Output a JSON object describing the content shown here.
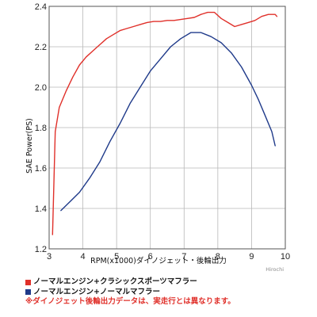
{
  "chart_data": {
    "type": "line",
    "xlabel": "RPM(x1000)ダイノジェット・後輪出力",
    "ylabel": "SAE Power(PS)",
    "xlim": [
      3,
      10
    ],
    "ylim": [
      1.2,
      2.4
    ],
    "xticks": [
      "3",
      "4",
      "5",
      "6",
      "7",
      "8",
      "9",
      "10"
    ],
    "yticks": [
      "1.2",
      "1.4",
      "1.6",
      "1.8",
      "2.0",
      "2.2",
      "2.4"
    ],
    "grid": true,
    "legend_position": "below",
    "series": [
      {
        "name": "ノーマルエンジン+クラシックスポーツマフラー",
        "color": "#e0302a",
        "x": [
          3.1,
          3.18,
          3.3,
          3.5,
          3.7,
          3.9,
          4.1,
          4.3,
          4.5,
          4.7,
          4.9,
          5.1,
          5.3,
          5.5,
          5.7,
          5.9,
          6.1,
          6.3,
          6.5,
          6.7,
          6.9,
          7.1,
          7.3,
          7.5,
          7.7,
          7.9,
          8.1,
          8.3,
          8.5,
          8.7,
          8.9,
          9.1,
          9.3,
          9.5,
          9.7,
          9.75
        ],
        "y": [
          1.27,
          1.78,
          1.9,
          1.98,
          2.05,
          2.11,
          2.15,
          2.18,
          2.21,
          2.24,
          2.26,
          2.28,
          2.29,
          2.3,
          2.31,
          2.32,
          2.325,
          2.325,
          2.33,
          2.33,
          2.335,
          2.34,
          2.345,
          2.36,
          2.37,
          2.37,
          2.34,
          2.32,
          2.3,
          2.31,
          2.32,
          2.33,
          2.35,
          2.36,
          2.36,
          2.35
        ]
      },
      {
        "name": "ノーマルエンジン+ノーマルマフラー",
        "color": "#1f3a8a",
        "x": [
          3.35,
          3.6,
          3.9,
          4.2,
          4.5,
          4.8,
          5.1,
          5.4,
          5.7,
          6.0,
          6.3,
          6.6,
          6.9,
          7.2,
          7.5,
          7.8,
          8.1,
          8.4,
          8.7,
          9.0,
          9.2,
          9.4,
          9.6,
          9.7
        ],
        "y": [
          1.39,
          1.43,
          1.48,
          1.55,
          1.63,
          1.73,
          1.82,
          1.92,
          2.0,
          2.08,
          2.14,
          2.2,
          2.24,
          2.27,
          2.27,
          2.25,
          2.22,
          2.17,
          2.1,
          2.01,
          1.94,
          1.86,
          1.78,
          1.71
        ]
      }
    ]
  },
  "legend": {
    "items": [
      {
        "label": "ノーマルエンジン+クラシックスポーツマフラー",
        "color": "#e0302a"
      },
      {
        "label": "ノーマルエンジン+ノーマルマフラー",
        "color": "#1f3a8a"
      }
    ],
    "note": "※ダイノジェット後輪出力データは、実走行とは異なります。"
  },
  "watermark": "Hirochi"
}
